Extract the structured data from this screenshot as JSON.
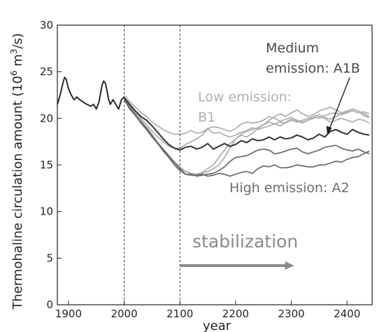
{
  "chart_data": {
    "type": "line",
    "xlabel": "year",
    "ylabel_main": "Thermohaline circulation amount (10",
    "ylabel_sup1": "6",
    "ylabel_mid": " m",
    "ylabel_sup2": "3",
    "ylabel_end": "/s)",
    "xlim": [
      1880,
      2445
    ],
    "ylim": [
      0,
      30
    ],
    "xticks": [
      1900,
      2000,
      2100,
      2200,
      2300,
      2400
    ],
    "yticks": [
      0,
      5,
      10,
      15,
      20,
      25,
      30
    ],
    "vlines": [
      2000,
      2100
    ],
    "annotations": {
      "medium": [
        "Medium",
        "emission: A1B"
      ],
      "low": [
        "Low emission:",
        "B1"
      ],
      "high": "High emission: A2",
      "stabilization": "stabilization"
    },
    "arrow": {
      "x_start": 2100,
      "x_end": 2305,
      "y": 4.2
    },
    "colors": {
      "historical": "#2a2a2a",
      "a1b": "#333333",
      "b1": "#b0b0b0",
      "a2": "#6e6e6e",
      "stab": "#8a8a8a"
    },
    "series": [
      {
        "group": "historical",
        "x": [
          1880,
          1885,
          1890,
          1893,
          1896,
          1900,
          1905,
          1910,
          1915,
          1920,
          1930,
          1940,
          1945,
          1950,
          1955,
          1960,
          1963,
          1966,
          1969,
          1972,
          1975,
          1980,
          1985,
          1990,
          1995,
          2000
        ],
        "y": [
          21.5,
          22.5,
          23.8,
          24.4,
          24.2,
          23.2,
          22.5,
          22.0,
          22.3,
          22.0,
          21.6,
          21.3,
          21.5,
          21.0,
          21.8,
          23.5,
          24.0,
          23.8,
          23.0,
          22.0,
          21.5,
          22.0,
          21.5,
          21.0,
          22.0,
          22.3
        ]
      },
      {
        "group": "a1b",
        "x": [
          2000,
          2010,
          2020,
          2030,
          2040,
          2050,
          2060,
          2070,
          2080,
          2090,
          2100,
          2110,
          2120,
          2130,
          2140,
          2150,
          2160,
          2170,
          2180,
          2190,
          2200,
          2210,
          2220,
          2230,
          2240,
          2250,
          2260,
          2270,
          2280,
          2290,
          2300,
          2310,
          2320,
          2330,
          2340,
          2350,
          2360,
          2370,
          2380,
          2390,
          2400,
          2410,
          2420,
          2430,
          2440
        ],
        "y": [
          22.2,
          21.5,
          20.8,
          20.2,
          19.8,
          19.2,
          18.5,
          17.8,
          17.2,
          16.8,
          16.6,
          16.9,
          17.0,
          16.7,
          16.9,
          17.3,
          16.7,
          17.0,
          17.3,
          17.0,
          17.2,
          17.6,
          17.4,
          17.8,
          17.6,
          17.7,
          18.0,
          17.7,
          18.0,
          17.8,
          17.9,
          18.2,
          18.0,
          17.7,
          17.9,
          18.3,
          18.0,
          18.6,
          18.8,
          18.5,
          18.3,
          18.8,
          18.5,
          18.3,
          18.2
        ]
      },
      {
        "group": "a2",
        "x": [
          2000,
          2010,
          2020,
          2030,
          2040,
          2050,
          2060,
          2070,
          2080,
          2090,
          2100,
          2110,
          2120,
          2130,
          2140,
          2150,
          2160,
          2170,
          2180,
          2190,
          2200,
          2210,
          2220,
          2230,
          2240,
          2250,
          2260,
          2270,
          2280,
          2290,
          2300,
          2310,
          2320,
          2330,
          2340,
          2350,
          2360,
          2370,
          2380,
          2390,
          2400,
          2410,
          2420,
          2430,
          2440
        ],
        "y": [
          22.0,
          21.2,
          20.4,
          19.6,
          19.0,
          18.2,
          17.4,
          16.7,
          16.0,
          15.3,
          14.6,
          14.0,
          13.9,
          13.9,
          14.0,
          13.8,
          13.9,
          14.1,
          14.0,
          13.8,
          14.0,
          14.2,
          14.3,
          14.1,
          14.6,
          14.9,
          14.8,
          15.0,
          14.7,
          14.7,
          14.8,
          15.0,
          14.9,
          14.8,
          14.8,
          15.0,
          15.0,
          15.2,
          15.4,
          15.3,
          15.6,
          15.8,
          15.9,
          16.2,
          16.5
        ]
      },
      {
        "group": "a2",
        "x": [
          2000,
          2010,
          2020,
          2030,
          2040,
          2050,
          2060,
          2070,
          2080,
          2090,
          2100,
          2110,
          2120,
          2130,
          2140,
          2150,
          2160,
          2170,
          2180,
          2190,
          2200,
          2210,
          2220,
          2230,
          2240,
          2250,
          2260,
          2270,
          2280,
          2290,
          2300,
          2310,
          2320,
          2330,
          2340,
          2350,
          2360,
          2370,
          2380,
          2390,
          2400,
          2410,
          2420,
          2430,
          2440
        ],
        "y": [
          22.0,
          21.0,
          20.3,
          19.5,
          18.8,
          18.0,
          17.3,
          16.5,
          15.8,
          15.0,
          14.4,
          14.0,
          14.0,
          13.8,
          13.9,
          14.0,
          14.1,
          14.4,
          14.8,
          15.4,
          15.8,
          15.9,
          16.0,
          16.3,
          16.6,
          16.7,
          16.6,
          16.2,
          16.3,
          16.5,
          16.7,
          16.8,
          16.4,
          16.2,
          16.4,
          16.6,
          16.9,
          17.0,
          17.1,
          16.8,
          16.6,
          16.5,
          16.7,
          16.4,
          16.2
        ]
      },
      {
        "group": "b1",
        "x": [
          2000,
          2010,
          2020,
          2030,
          2040,
          2050,
          2060,
          2070,
          2080,
          2090,
          2100,
          2110,
          2120,
          2130,
          2140,
          2150,
          2160,
          2170,
          2180,
          2190,
          2200,
          2210,
          2220,
          2230,
          2240,
          2250,
          2260,
          2270,
          2280,
          2290,
          2300,
          2310,
          2320,
          2330,
          2340,
          2350,
          2360,
          2370,
          2380,
          2390,
          2400,
          2410,
          2420,
          2430,
          2440
        ],
        "y": [
          22.4,
          21.8,
          21.2,
          20.6,
          20.2,
          19.6,
          19.2,
          18.8,
          18.5,
          18.3,
          18.3,
          18.4,
          18.7,
          18.4,
          18.5,
          18.9,
          18.4,
          18.5,
          18.2,
          18.0,
          18.2,
          18.5,
          18.7,
          19.0,
          18.8,
          19.0,
          19.2,
          19.4,
          19.6,
          19.5,
          19.8,
          19.6,
          19.8,
          20.0,
          20.2,
          20.0,
          20.3,
          20.5,
          20.6,
          20.4,
          20.6,
          20.8,
          20.6,
          20.7,
          20.5
        ]
      },
      {
        "group": "b1",
        "x": [
          2000,
          2010,
          2020,
          2030,
          2040,
          2050,
          2060,
          2070,
          2080,
          2090,
          2100,
          2110,
          2120,
          2130,
          2140,
          2150,
          2160,
          2170,
          2180,
          2190,
          2200,
          2210,
          2220,
          2230,
          2240,
          2250,
          2260,
          2270,
          2280,
          2290,
          2300,
          2310,
          2320,
          2330,
          2340,
          2350,
          2360,
          2370,
          2380,
          2390,
          2400,
          2410,
          2420,
          2430,
          2440
        ],
        "y": [
          22.3,
          21.5,
          20.8,
          20.0,
          19.3,
          18.6,
          18.0,
          17.5,
          17.0,
          16.8,
          16.8,
          17.2,
          17.5,
          17.8,
          18.2,
          18.9,
          19.1,
          19.0,
          18.8,
          18.6,
          18.9,
          19.4,
          19.6,
          19.5,
          19.6,
          19.8,
          20.2,
          20.0,
          19.7,
          19.9,
          20.1,
          19.8,
          19.6,
          19.8,
          20.0,
          20.2,
          20.0,
          19.6,
          19.8,
          20.0,
          19.8,
          19.6,
          19.9,
          19.8,
          19.5
        ]
      },
      {
        "group": "b1",
        "x": [
          2000,
          2010,
          2020,
          2030,
          2040,
          2050,
          2060,
          2070,
          2080,
          2090,
          2100,
          2110,
          2120,
          2130,
          2140,
          2150,
          2160,
          2170,
          2180,
          2190,
          2200,
          2210,
          2220,
          2230,
          2240,
          2250,
          2260,
          2270,
          2280,
          2290,
          2300,
          2310,
          2320,
          2330,
          2340,
          2350,
          2360,
          2370,
          2380,
          2390,
          2400,
          2410,
          2420,
          2430,
          2440
        ],
        "y": [
          22.2,
          21.4,
          20.6,
          19.8,
          19.0,
          18.2,
          17.4,
          16.6,
          15.9,
          15.2,
          14.6,
          14.3,
          14.1,
          14.0,
          14.1,
          14.3,
          14.6,
          15.0,
          15.8,
          16.8,
          17.8,
          18.3,
          18.6,
          18.8,
          19.0,
          19.3,
          19.8,
          20.2,
          20.5,
          20.2,
          20.6,
          20.9,
          20.5,
          20.2,
          20.4,
          20.8,
          21.0,
          21.2,
          20.9,
          20.6,
          20.8,
          21.0,
          20.8,
          20.5,
          20.2
        ]
      },
      {
        "group": "b1",
        "x": [
          2000,
          2010,
          2020,
          2030,
          2040,
          2050,
          2060,
          2070,
          2080,
          2090,
          2100,
          2110,
          2120,
          2130,
          2140,
          2150,
          2160,
          2170,
          2180,
          2190,
          2200,
          2210,
          2220,
          2230,
          2240,
          2250,
          2260,
          2270,
          2280,
          2290,
          2300,
          2310,
          2320,
          2330,
          2340,
          2350,
          2360,
          2370,
          2380,
          2390,
          2400,
          2410,
          2420,
          2430,
          2440
        ],
        "y": [
          22.1,
          21.3,
          20.5,
          19.7,
          18.9,
          18.1,
          17.3,
          16.6,
          15.9,
          15.3,
          14.8,
          14.3,
          14.1,
          14.0,
          14.2,
          14.6,
          15.0,
          15.8,
          16.6,
          17.3,
          17.8,
          18.2,
          18.0,
          18.4,
          18.9,
          19.3,
          19.6,
          19.4,
          19.2,
          19.6,
          19.9,
          19.7,
          19.5,
          19.8,
          20.2,
          20.4,
          20.1,
          19.9,
          20.2,
          20.5,
          20.7,
          21.0,
          20.8,
          20.3,
          20.1
        ]
      }
    ]
  }
}
